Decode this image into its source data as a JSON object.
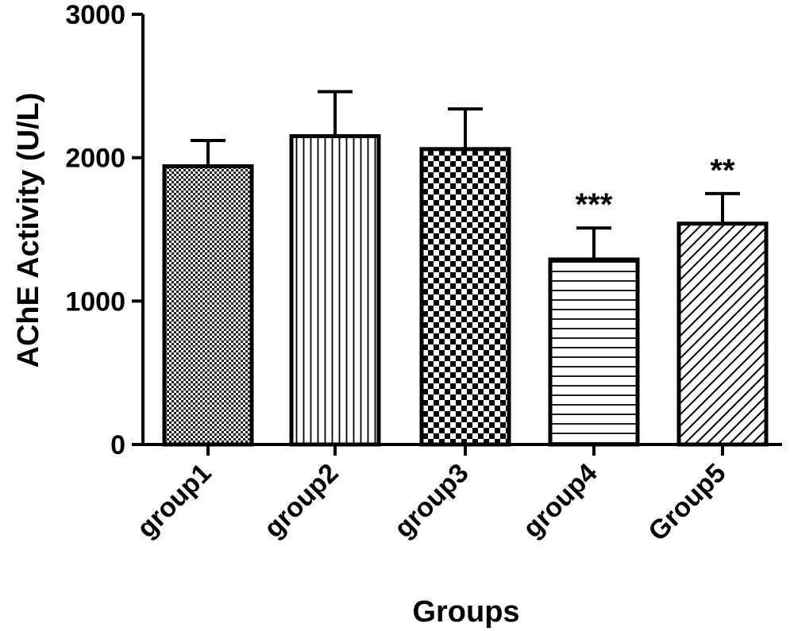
{
  "chart_data": {
    "type": "bar",
    "xlabel": "Groups",
    "ylabel": "AChE Activity (U/L)",
    "ylim": [
      0,
      3000
    ],
    "yticks": [
      "0",
      "1000",
      "2000",
      "3000"
    ],
    "categories": [
      "group1",
      "group2",
      "group3",
      "group4",
      "Group5"
    ],
    "values": [
      1940,
      2150,
      2060,
      1290,
      1540
    ],
    "error_upper": [
      180,
      310,
      280,
      220,
      210
    ],
    "annotations": [
      "",
      "",
      "",
      "***",
      "**"
    ],
    "patterns": [
      "fine-checker",
      "vertical-lines",
      "checker",
      "horizontal-lines",
      "diagonal-lines"
    ],
    "grid": false,
    "legend": "none",
    "bar_color": "#000000"
  }
}
